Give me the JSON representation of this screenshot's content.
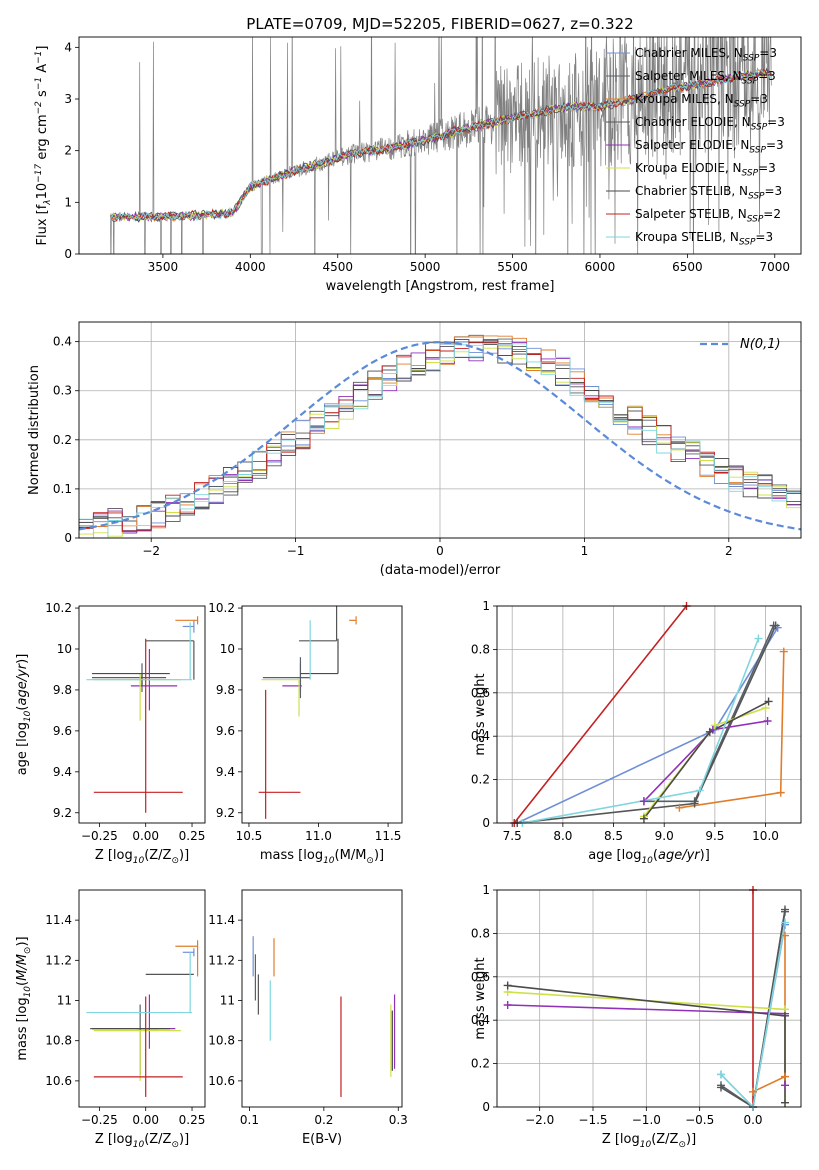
{
  "series_styles": [
    {
      "name": "Chabrier MILES, N$_{SSP}$=3",
      "color": "#6f8fd8"
    },
    {
      "name": "Salpeter MILES, N$_{SSP}$=3",
      "color": "#57606a"
    },
    {
      "name": "Kroupa MILES, N$_{SSP}$=3",
      "color": "#e07d2a"
    },
    {
      "name": "Chabrier ELODIE, N$_{SSP}$=3",
      "color": "#555555"
    },
    {
      "name": "Salpeter ELODIE, N$_{SSP}$=3",
      "color": "#9130b9"
    },
    {
      "name": "Kroupa ELODIE, N$_{SSP}$=3",
      "color": "#cfe04a"
    },
    {
      "name": "Chabrier STELIB, N$_{SSP}$=3",
      "color": "#4a4a4a"
    },
    {
      "name": "Salpeter STELIB, N$_{SSP}$=2",
      "color": "#c42020"
    },
    {
      "name": "Kroupa STELIB, N$_{SSP}$=3",
      "color": "#7fd6de"
    }
  ],
  "chart_data": [
    {
      "type": "line",
      "title": "PLATE=0709, MJD=52205, FIBERID=0627, z=0.322",
      "xlabel": "wavelength [Angstrom, rest frame]",
      "ylabel": "Flux [f$_\\lambda$10$^{-17}$ erg cm$^{-2}$ s$^{-1}$ A$^{-1}$]",
      "xlim": [
        3020,
        7150
      ],
      "ylim": [
        0,
        4.2
      ],
      "xticks": [
        3500,
        4000,
        4500,
        5000,
        5500,
        6000,
        6500,
        7000
      ],
      "yticks": [
        0,
        1,
        2,
        3,
        4
      ],
      "grid": false,
      "legend_position": "upper-right",
      "data_color": "#808080",
      "x_range_observed": [
        3200,
        6980
      ],
      "model_anchor_x": [
        3200,
        3500,
        3700,
        3900,
        4000,
        4200,
        4400,
        4600,
        4800,
        5000,
        5200,
        5400,
        5600,
        5800,
        6000,
        6200,
        6400,
        6600,
        6800,
        6980
      ],
      "model_anchor_y": [
        0.72,
        0.72,
        0.75,
        0.8,
        1.3,
        1.55,
        1.75,
        1.95,
        2.05,
        2.2,
        2.4,
        2.55,
        2.7,
        2.85,
        2.85,
        3.0,
        3.2,
        3.3,
        3.45,
        3.5
      ]
    },
    {
      "type": "line",
      "xlabel": "(data-model)/error",
      "ylabel": "Normed distribution",
      "xlim": [
        -2.5,
        2.5
      ],
      "ylim": [
        0,
        0.44
      ],
      "xticks": [
        -2,
        -1,
        0,
        1,
        2
      ],
      "yticks": [
        0.0,
        0.1,
        0.2,
        0.3,
        0.4
      ],
      "grid": true,
      "legend_position": "upper-right",
      "normal_legend": "$\\mathcal{N}(0,1)$",
      "normal_color": "#5b8ad8",
      "bin_width": 0.1,
      "hist_profile": [
        0.02,
        0.025,
        0.03,
        0.035,
        0.04,
        0.05,
        0.06,
        0.07,
        0.085,
        0.1,
        0.115,
        0.13,
        0.15,
        0.17,
        0.19,
        0.21,
        0.23,
        0.25,
        0.27,
        0.29,
        0.31,
        0.33,
        0.345,
        0.36,
        0.37,
        0.38,
        0.385,
        0.39,
        0.39,
        0.385,
        0.38,
        0.37,
        0.355,
        0.34,
        0.32,
        0.3,
        0.28,
        0.26,
        0.24,
        0.22,
        0.2,
        0.185,
        0.17,
        0.155,
        0.14,
        0.125,
        0.11,
        0.1,
        0.09,
        0.08
      ]
    },
    {
      "type": "scatter",
      "xlabel": "Z [log$_{10}$(Z/Z$_\\odot$)]",
      "ylabel": "age  [log$_{10}$($age/yr$)]",
      "xlim": [
        -0.36,
        0.32
      ],
      "ylim": [
        9.15,
        10.21
      ],
      "xticks": [
        -0.25,
        0.0,
        0.25
      ],
      "xticklabels": [
        "−0.25",
        "0.00",
        "0.25"
      ],
      "yticks": [
        9.2,
        9.4,
        9.6,
        9.8,
        10.0,
        10.2
      ],
      "grid": false,
      "points": [
        {
          "series": 0,
          "x": 0.26,
          "y": 10.11,
          "xerr": [
            0.06,
            0.0
          ],
          "yerr": [
            0.03,
            0.03
          ]
        },
        {
          "series": 1,
          "x": -0.02,
          "y": 9.86,
          "xerr": [
            0.27,
            0.13
          ],
          "yerr": [
            0.07,
            0.07
          ]
        },
        {
          "series": 2,
          "x": 0.28,
          "y": 10.14,
          "xerr": [
            0.12,
            0.0
          ],
          "yerr": [
            0.02,
            0.02
          ]
        },
        {
          "series": 3,
          "x": 0.26,
          "y": 10.04,
          "xerr": [
            0.26,
            0.0
          ],
          "yerr": [
            0.19,
            0.0
          ]
        },
        {
          "series": 4,
          "x": 0.02,
          "y": 9.82,
          "xerr": [
            0.1,
            0.15
          ],
          "yerr": [
            0.12,
            0.18
          ]
        },
        {
          "series": 5,
          "x": -0.03,
          "y": 9.85,
          "xerr": [
            0.25,
            0.22
          ],
          "yerr": [
            0.2,
            0.03
          ]
        },
        {
          "series": 6,
          "x": -0.02,
          "y": 9.88,
          "xerr": [
            0.27,
            0.15
          ],
          "yerr": [
            0.06,
            0.0
          ]
        },
        {
          "series": 7,
          "x": 0.0,
          "y": 9.3,
          "xerr": [
            0.28,
            0.2
          ],
          "yerr": [
            0.1,
            0.75
          ]
        },
        {
          "series": 8,
          "x": 0.24,
          "y": 9.85,
          "xerr": [
            0.56,
            0.01
          ],
          "yerr": [
            0.0,
            0.28
          ]
        }
      ]
    },
    {
      "type": "scatter",
      "xlabel": "mass [log$_{10}$(M/M$_\\odot$)]",
      "ylabel": "",
      "xlim": [
        10.45,
        11.6
      ],
      "ylim": [
        9.15,
        10.21
      ],
      "xticks": [
        10.5,
        11.0,
        11.5
      ],
      "xticklabels": [
        "10.5",
        "11.0",
        "11.5"
      ],
      "yticks": [
        9.2,
        9.4,
        9.6,
        9.8,
        10.0,
        10.2
      ],
      "grid": false,
      "points": [
        {
          "series": 0,
          "x": 10.87,
          "y": 9.86,
          "xerr": [
            0.02,
            0.0
          ],
          "yerr": [
            0.07,
            0.07
          ]
        },
        {
          "series": 1,
          "x": 10.87,
          "y": 9.86,
          "xerr": [
            0.27,
            0.07
          ],
          "yerr": [
            0.1,
            0.1
          ]
        },
        {
          "series": 2,
          "x": 11.27,
          "y": 10.14,
          "xerr": [
            0.05,
            0.0
          ],
          "yerr": [
            0.02,
            0.02
          ]
        },
        {
          "series": 3,
          "x": 11.13,
          "y": 10.04,
          "xerr": [
            0.27,
            0.0
          ],
          "yerr": [
            0.0,
            0.2
          ]
        },
        {
          "series": 4,
          "x": 10.86,
          "y": 9.82,
          "xerr": [
            0.12,
            0.02
          ],
          "yerr": [
            0.0,
            0.0
          ]
        },
        {
          "series": 5,
          "x": 10.86,
          "y": 9.85,
          "xerr": [
            0.27,
            0.0
          ],
          "yerr": [
            0.18,
            0.0
          ]
        },
        {
          "series": 6,
          "x": 11.14,
          "y": 9.88,
          "xerr": [
            0.27,
            0.0
          ],
          "yerr": [
            0.0,
            0.17
          ]
        },
        {
          "series": 7,
          "x": 10.62,
          "y": 9.3,
          "xerr": [
            0.05,
            0.25
          ],
          "yerr": [
            0.13,
            0.5
          ]
        },
        {
          "series": 8,
          "x": 10.94,
          "y": 9.85,
          "xerr": [
            0.0,
            0.0
          ],
          "yerr": [
            0.0,
            0.29
          ]
        }
      ]
    },
    {
      "type": "line",
      "xlabel": "age  [log$_{10}$($age/yr$)]",
      "ylabel": "mass weight",
      "xlim": [
        7.35,
        10.35
      ],
      "ylim": [
        0,
        1
      ],
      "xticks": [
        7.5,
        8.0,
        8.5,
        9.0,
        9.5,
        10.0
      ],
      "xticklabels": [
        "7.5",
        "8.0",
        "8.5",
        "9.0",
        "9.5",
        "10.0"
      ],
      "yticks": [
        0.0,
        0.2,
        0.4,
        0.6,
        0.8,
        1.0
      ],
      "grid": true,
      "series": [
        {
          "series": 0,
          "x": [
            7.55,
            9.5,
            10.12
          ],
          "y": [
            0.0,
            0.43,
            0.9
          ]
        },
        {
          "series": 1,
          "x": [
            8.8,
            9.3,
            10.08
          ],
          "y": [
            0.1,
            0.1,
            0.91
          ]
        },
        {
          "series": 2,
          "x": [
            9.15,
            10.15,
            10.18
          ],
          "y": [
            0.07,
            0.14,
            0.79
          ]
        },
        {
          "series": 3,
          "x": [
            7.55,
            9.3,
            10.1
          ],
          "y": [
            0.0,
            0.09,
            0.91
          ]
        },
        {
          "series": 4,
          "x": [
            8.8,
            9.48,
            10.02
          ],
          "y": [
            0.1,
            0.43,
            0.47
          ]
        },
        {
          "series": 5,
          "x": [
            8.8,
            9.5,
            10.0
          ],
          "y": [
            0.03,
            0.45,
            0.53
          ]
        },
        {
          "series": 6,
          "x": [
            8.8,
            9.45,
            10.03
          ],
          "y": [
            0.02,
            0.42,
            0.56
          ]
        },
        {
          "series": 7,
          "x": [
            7.52,
            9.22
          ],
          "y": [
            0.0,
            1.0
          ]
        },
        {
          "series": 8,
          "x": [
            7.6,
            9.35,
            9.93
          ],
          "y": [
            0.0,
            0.15,
            0.85
          ]
        }
      ]
    },
    {
      "type": "scatter",
      "xlabel": "Z [log$_{10}$(Z/Z$_\\odot$)]",
      "ylabel": "mass [log$_{10}$($M/M_\\odot$)]",
      "xlim": [
        -0.36,
        0.32
      ],
      "ylim": [
        10.47,
        11.55
      ],
      "xticks": [
        -0.25,
        0.0,
        0.25
      ],
      "xticklabels": [
        "−0.25",
        "0.00",
        "0.25"
      ],
      "yticks": [
        10.6,
        10.8,
        11.0,
        11.2,
        11.4
      ],
      "grid": false,
      "points": [
        {
          "series": 0,
          "x": 0.26,
          "y": 11.24,
          "xerr": [
            0.06,
            0.0
          ],
          "yerr": [
            0.02,
            0.02
          ]
        },
        {
          "series": 1,
          "x": -0.03,
          "y": 10.86,
          "xerr": [
            0.27,
            0.1
          ],
          "yerr": [
            0.23,
            0.12
          ]
        },
        {
          "series": 2,
          "x": 0.28,
          "y": 11.27,
          "xerr": [
            0.12,
            0.0
          ],
          "yerr": [
            0.15,
            0.03
          ]
        },
        {
          "series": 3,
          "x": 0.26,
          "y": 11.13,
          "xerr": [
            0.26,
            0.0
          ],
          "yerr": [
            0.0,
            0.0
          ]
        },
        {
          "series": 4,
          "x": 0.02,
          "y": 10.86,
          "xerr": [
            0.07,
            0.14
          ],
          "yerr": [
            0.1,
            0.17
          ]
        },
        {
          "series": 5,
          "x": -0.03,
          "y": 10.85,
          "xerr": [
            0.25,
            0.22
          ],
          "yerr": [
            0.25,
            0.0
          ]
        },
        {
          "series": 6,
          "x": -0.02,
          "y": 10.86,
          "xerr": [
            0.27,
            0.15
          ],
          "yerr": [
            0.0,
            0.0
          ]
        },
        {
          "series": 7,
          "x": 0.0,
          "y": 10.62,
          "xerr": [
            0.28,
            0.2
          ],
          "yerr": [
            0.1,
            0.4
          ]
        },
        {
          "series": 8,
          "x": 0.24,
          "y": 10.94,
          "xerr": [
            0.56,
            0.01
          ],
          "yerr": [
            0.0,
            0.3
          ]
        }
      ]
    },
    {
      "type": "scatter",
      "xlabel": "E(B-V)",
      "ylabel": "",
      "xlim": [
        0.09,
        0.305
      ],
      "ylim": [
        10.47,
        11.55
      ],
      "xticks": [
        0.1,
        0.2,
        0.3
      ],
      "xticklabels": [
        "0.1",
        "0.2",
        "0.3"
      ],
      "yticks": [
        10.6,
        10.8,
        11.0,
        11.2,
        11.4
      ],
      "grid": false,
      "points": [
        {
          "series": 0,
          "x": 0.105,
          "y": 11.24,
          "xerr": [
            0.0,
            0.0
          ],
          "yerr": [
            0.12,
            0.08
          ]
        },
        {
          "series": 1,
          "x": 0.108,
          "y": 11.13,
          "xerr": [
            0.0,
            0.0
          ],
          "yerr": [
            0.13,
            0.1
          ]
        },
        {
          "series": 2,
          "x": 0.133,
          "y": 11.2,
          "xerr": [
            0.0,
            0.0
          ],
          "yerr": [
            0.08,
            0.11
          ]
        },
        {
          "series": 3,
          "x": 0.112,
          "y": 11.13,
          "xerr": [
            0.0,
            0.0
          ],
          "yerr": [
            0.2,
            0.0
          ]
        },
        {
          "series": 4,
          "x": 0.295,
          "y": 10.86,
          "xerr": [
            0.0,
            0.0
          ],
          "yerr": [
            0.2,
            0.17
          ]
        },
        {
          "series": 5,
          "x": 0.29,
          "y": 10.8,
          "xerr": [
            0.0,
            0.0
          ],
          "yerr": [
            0.18,
            0.18
          ]
        },
        {
          "series": 6,
          "x": 0.292,
          "y": 10.8,
          "xerr": [
            0.0,
            0.0
          ],
          "yerr": [
            0.15,
            0.15
          ]
        },
        {
          "series": 7,
          "x": 0.223,
          "y": 10.75,
          "xerr": [
            0.0,
            0.0
          ],
          "yerr": [
            0.23,
            0.27
          ]
        },
        {
          "series": 8,
          "x": 0.128,
          "y": 10.94,
          "xerr": [
            0.0,
            0.0
          ],
          "yerr": [
            0.14,
            0.16
          ]
        }
      ]
    },
    {
      "type": "line",
      "xlabel": "Z [log$_{10}$(Z/Z$_\\odot$)]",
      "ylabel": "mass weight",
      "xlim": [
        -2.4,
        0.45
      ],
      "ylim": [
        0,
        1
      ],
      "xticks": [
        -2.0,
        -1.5,
        -1.0,
        -0.5,
        0.0
      ],
      "xticklabels": [
        "−2.0",
        "−1.5",
        "−1.0",
        "−0.5",
        "0.0"
      ],
      "yticks": [
        0.0,
        0.2,
        0.4,
        0.6,
        0.8,
        1.0
      ],
      "grid": true,
      "series": [
        {
          "series": 0,
          "x": [
            -0.3,
            0.0,
            0.3
          ],
          "y": [
            0.15,
            0.0,
            0.84
          ]
        },
        {
          "series": 1,
          "x": [
            -0.3,
            0.0,
            0.3
          ],
          "y": [
            0.1,
            0.0,
            0.9
          ]
        },
        {
          "series": 2,
          "x": [
            0.0,
            0.3,
            0.3
          ],
          "y": [
            0.07,
            0.14,
            0.79
          ]
        },
        {
          "series": 3,
          "x": [
            -0.3,
            0.0,
            0.3
          ],
          "y": [
            0.09,
            0.0,
            0.91
          ]
        },
        {
          "series": 4,
          "x": [
            -2.3,
            0.3,
            0.3
          ],
          "y": [
            0.47,
            0.43,
            0.1
          ]
        },
        {
          "series": 5,
          "x": [
            -2.3,
            0.3,
            0.3
          ],
          "y": [
            0.53,
            0.45,
            0.02
          ]
        },
        {
          "series": 6,
          "x": [
            -2.3,
            0.3,
            0.3
          ],
          "y": [
            0.56,
            0.42,
            0.02
          ]
        },
        {
          "series": 7,
          "x": [
            0.0,
            0.0
          ],
          "y": [
            0.0,
            1.0
          ]
        },
        {
          "series": 8,
          "x": [
            -0.3,
            0.0,
            0.3
          ],
          "y": [
            0.15,
            0.0,
            0.85
          ]
        }
      ]
    }
  ]
}
